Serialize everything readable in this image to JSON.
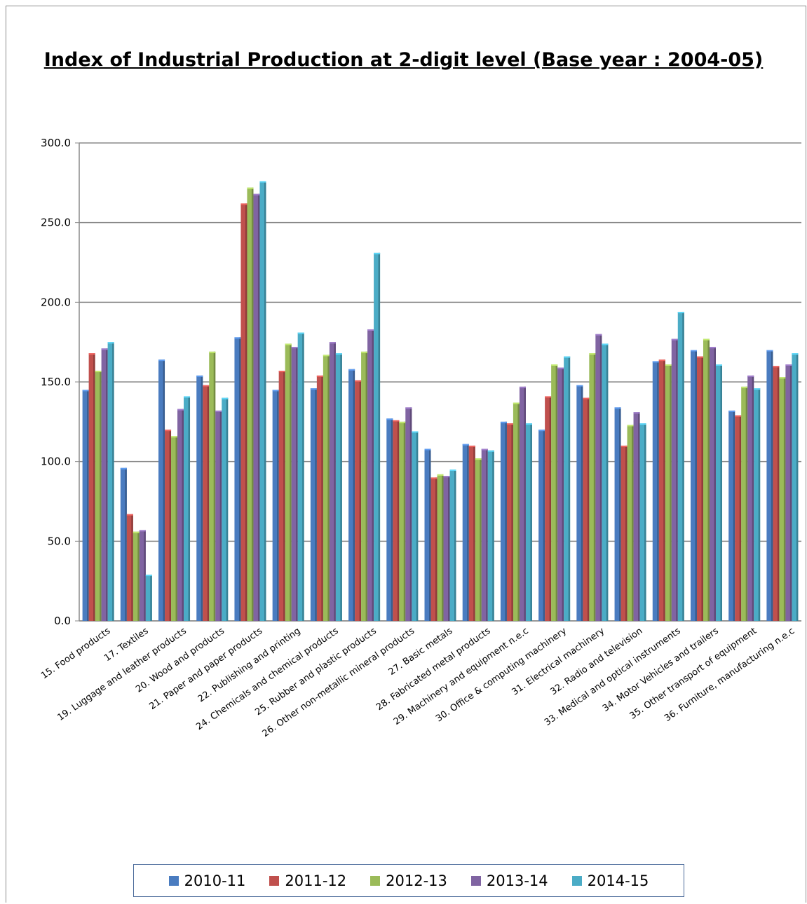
{
  "chart_data": {
    "type": "bar",
    "title": "Index of Industrial Production at 2-digit level (Base year : 2004-05)",
    "ylim": [
      0,
      300
    ],
    "yticks": [
      "0.0",
      "50.0",
      "100.0",
      "150.0",
      "200.0",
      "250.0",
      "300.0"
    ],
    "ytick_values": [
      0,
      50,
      100,
      150,
      200,
      250,
      300
    ],
    "grid": true,
    "legend_position": "bottom",
    "categories": [
      "15. Food products",
      "17. Textiles",
      "19. Luggage and leather products",
      "20. Wood and products",
      "21. Paper and paper products",
      "22. Publishing and printing",
      "24. Chemicals and chemical products",
      "25. Rubber and plastic products",
      "26. Other non-metallic mineral products",
      "27. Basic metals",
      "28. Fabricated metal products",
      "29. Machinery and equipment n.e.c",
      "30. Office & computing machinery",
      "31. Electrical machinery",
      "32. Radio and television",
      "33. Medical and optical instruments",
      "34. Motor Vehicles and trailers",
      "35. Other transport of equipment",
      "36. Furniture, manufacturing n.e.c"
    ],
    "series": [
      {
        "name": "2010-11",
        "color": "#4a7cc0",
        "values": [
          145,
          96,
          164,
          154,
          178,
          145,
          146,
          158,
          127,
          108,
          111,
          125,
          120,
          148,
          134,
          163,
          170,
          132,
          170
        ]
      },
      {
        "name": "2011-12",
        "color": "#c0504d",
        "values": [
          168,
          67,
          120,
          148,
          262,
          157,
          154,
          151,
          126,
          90,
          110,
          124,
          141,
          140,
          110,
          164,
          166,
          129,
          160
        ]
      },
      {
        "name": "2012-13",
        "color": "#9bbb59",
        "values": [
          157,
          56,
          116,
          169,
          272,
          174,
          167,
          169,
          125,
          92,
          102,
          137,
          161,
          168,
          123,
          161,
          177,
          147,
          153
        ]
      },
      {
        "name": "2013-14",
        "color": "#8064a2",
        "values": [
          171,
          57,
          133,
          132,
          268,
          172,
          175,
          183,
          134,
          91,
          108,
          147,
          159,
          180,
          131,
          177,
          172,
          154,
          161
        ]
      },
      {
        "name": "2014-15",
        "color": "#4bacc6",
        "values": [
          175,
          29,
          141,
          140,
          276,
          181,
          168,
          231,
          119,
          95,
          107,
          124,
          166,
          174,
          124,
          194,
          161,
          146,
          168
        ]
      }
    ]
  }
}
